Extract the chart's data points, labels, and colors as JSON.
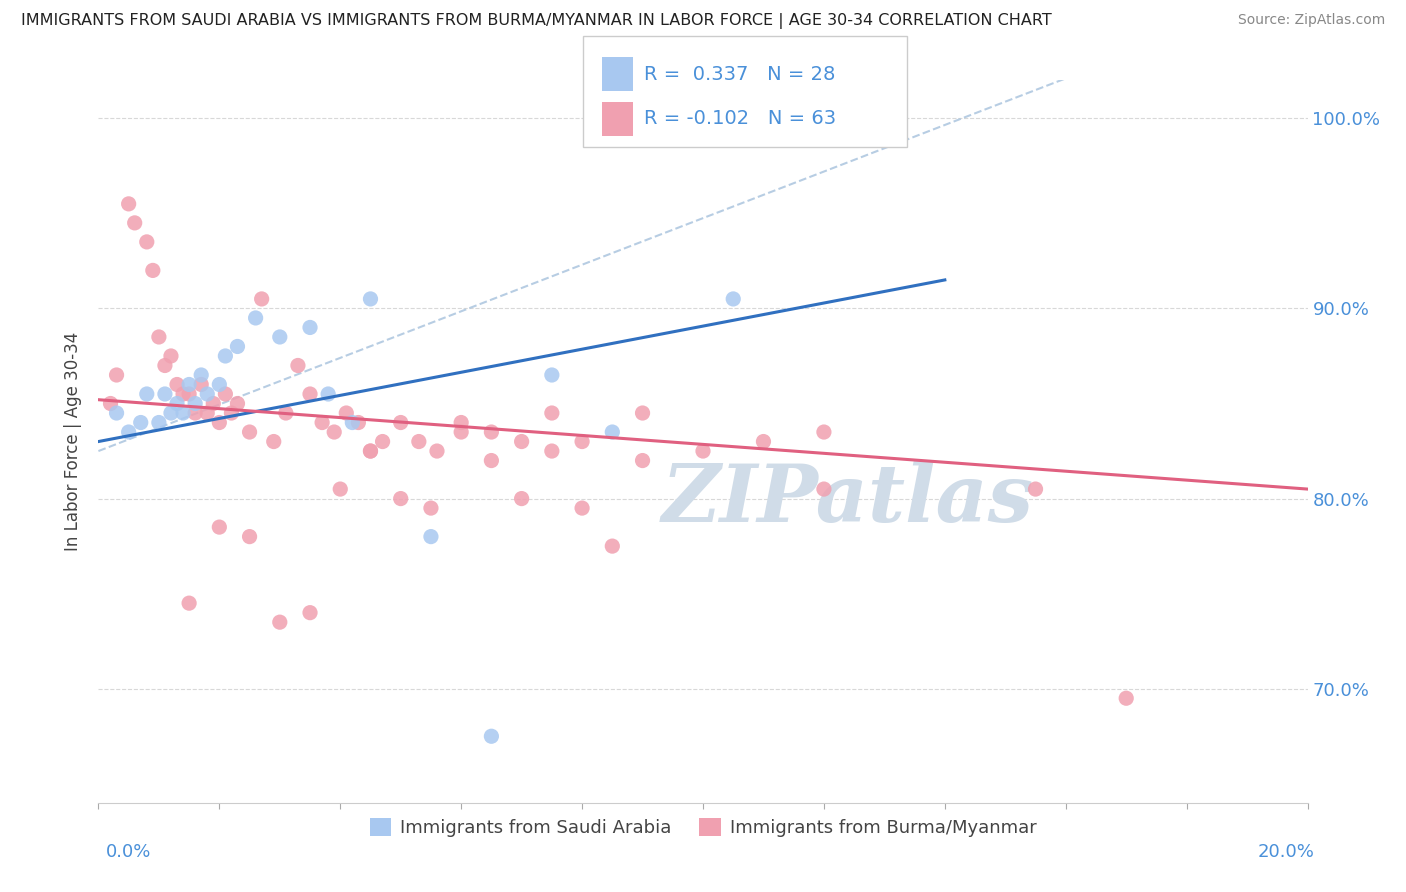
{
  "title": "IMMIGRANTS FROM SAUDI ARABIA VS IMMIGRANTS FROM BURMA/MYANMAR IN LABOR FORCE | AGE 30-34 CORRELATION CHART",
  "source": "Source: ZipAtlas.com",
  "ylabel": "In Labor Force | Age 30-34",
  "legend1_label": "Immigrants from Saudi Arabia",
  "legend2_label": "Immigrants from Burma/Myanmar",
  "R1": 0.337,
  "N1": 28,
  "R2": -0.102,
  "N2": 63,
  "color_saudi": "#a8c8f0",
  "color_burma": "#f0a0b0",
  "color_saudi_line": "#3070c0",
  "color_burma_line": "#e06080",
  "color_dashed": "#b0c8e0",
  "saudi_x": [
    0.3,
    0.5,
    0.7,
    0.8,
    1.0,
    1.1,
    1.2,
    1.3,
    1.4,
    1.5,
    1.6,
    1.7,
    1.8,
    2.0,
    2.1,
    2.3,
    2.6,
    3.0,
    3.5,
    4.5,
    5.5,
    6.5,
    7.5,
    8.5,
    10.5,
    12.5,
    3.8,
    4.2
  ],
  "saudi_y": [
    84.5,
    83.5,
    84.0,
    85.5,
    84.0,
    85.5,
    84.5,
    85.0,
    84.5,
    86.0,
    85.0,
    86.5,
    85.5,
    86.0,
    87.5,
    88.0,
    89.5,
    88.5,
    89.0,
    90.5,
    78.0,
    67.5,
    86.5,
    83.5,
    90.5,
    100.0,
    85.5,
    84.0
  ],
  "burma_x": [
    0.2,
    0.3,
    0.5,
    0.6,
    0.8,
    0.9,
    1.0,
    1.1,
    1.2,
    1.3,
    1.4,
    1.5,
    1.6,
    1.7,
    1.8,
    1.9,
    2.0,
    2.1,
    2.2,
    2.3,
    2.5,
    2.7,
    2.9,
    3.1,
    3.3,
    3.5,
    3.7,
    3.9,
    4.1,
    4.3,
    4.5,
    4.7,
    5.0,
    5.3,
    5.6,
    6.0,
    6.5,
    7.0,
    7.5,
    8.0,
    9.0,
    10.0,
    11.0,
    12.0,
    1.5,
    2.0,
    2.5,
    3.0,
    3.5,
    4.0,
    4.5,
    5.0,
    5.5,
    6.0,
    6.5,
    7.0,
    7.5,
    8.0,
    8.5,
    9.0,
    12.0,
    15.5,
    17.0
  ],
  "burma_y": [
    85.0,
    86.5,
    95.5,
    94.5,
    93.5,
    92.0,
    88.5,
    87.0,
    87.5,
    86.0,
    85.5,
    85.5,
    84.5,
    86.0,
    84.5,
    85.0,
    84.0,
    85.5,
    84.5,
    85.0,
    83.5,
    90.5,
    83.0,
    84.5,
    87.0,
    85.5,
    84.0,
    83.5,
    84.5,
    84.0,
    82.5,
    83.0,
    84.0,
    83.0,
    82.5,
    84.0,
    83.5,
    83.0,
    84.5,
    83.0,
    84.5,
    82.5,
    83.0,
    83.5,
    74.5,
    78.5,
    78.0,
    73.5,
    74.0,
    80.5,
    82.5,
    80.0,
    79.5,
    83.5,
    82.0,
    80.0,
    82.5,
    79.5,
    77.5,
    82.0,
    80.5,
    80.5,
    69.5
  ],
  "xlim": [
    0,
    20
  ],
  "ylim": [
    64,
    102
  ],
  "yticks": [
    70,
    80,
    90,
    100
  ],
  "yticklabels": [
    "70.0%",
    "80.0%",
    "90.0%",
    "100.0%"
  ],
  "xtick_count": 11,
  "background_color": "#ffffff",
  "grid_color": "#d8d8d8",
  "watermark_text": "ZIPatlas",
  "watermark_color": "#d0dce8"
}
